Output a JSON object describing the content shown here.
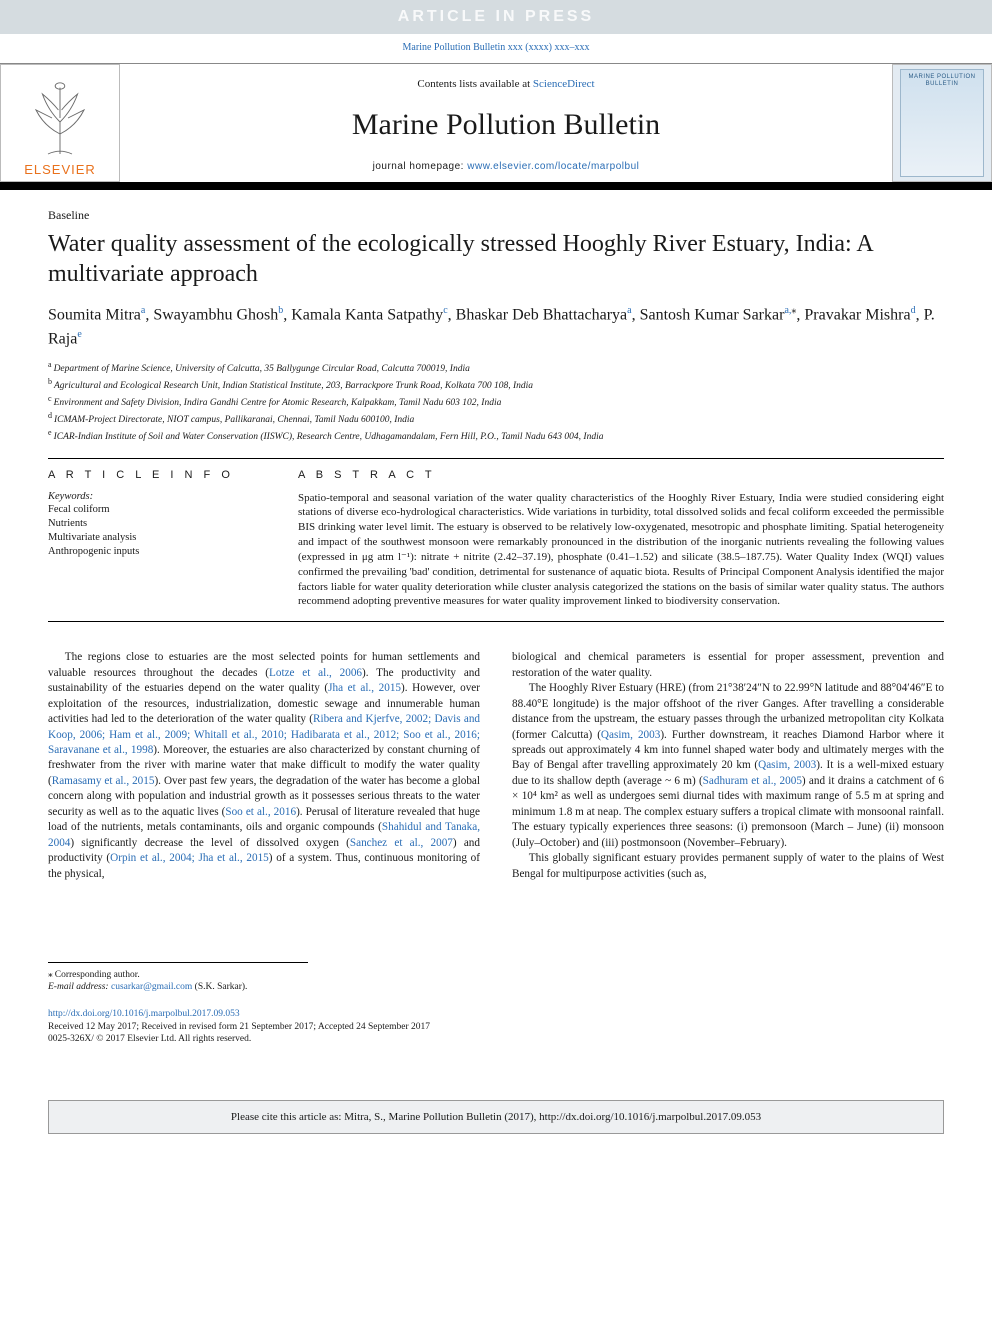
{
  "banner": {
    "label": "ARTICLE IN PRESS"
  },
  "journal_ref": {
    "text": "Marine Pollution Bulletin xxx (xxxx) xxx–xxx",
    "href_text": "Marine Pollution Bulletin xxx (xxxx) xxx–xxx"
  },
  "masthead": {
    "contents_prefix": "Contents lists available at ",
    "contents_link": "ScienceDirect",
    "journal_title": "Marine Pollution Bulletin",
    "homepage_prefix": "journal homepage: ",
    "homepage_link": "www.elsevier.com/locate/marpolbul",
    "publisher": "ELSEVIER",
    "cover_title": "MARINE POLLUTION BULLETIN"
  },
  "article": {
    "type": "Baseline",
    "title": "Water quality assessment of the ecologically stressed Hooghly River Estuary, India: A multivariate approach",
    "authors_html": "Soumita Mitra<sup class='sup-link'>a</sup>, Swayambhu Ghosh<sup class='sup-link'>b</sup>, Kamala Kanta Satpathy<sup class='sup-link'>c</sup>, Bhaskar Deb Bhattacharya<sup class='sup-link'>a</sup>, Santosh Kumar Sarkar<sup class='sup-link'>a,</sup><sup>⁎</sup>, Pravakar Mishra<sup class='sup-link'>d</sup>, P. Raja<sup class='sup-link'>e</sup>",
    "affiliations": [
      {
        "sup": "a",
        "text": "Department of Marine Science, University of Calcutta, 35 Ballygunge Circular Road, Calcutta 700019, India"
      },
      {
        "sup": "b",
        "text": "Agricultural and Ecological Research Unit, Indian Statistical Institute, 203, Barrackpore Trunk Road, Kolkata 700 108, India"
      },
      {
        "sup": "c",
        "text": "Environment and Safety Division, Indira Gandhi Centre for Atomic Research, Kalpakkam, Tamil Nadu 603 102, India"
      },
      {
        "sup": "d",
        "text": "ICMAM-Project Directorate, NIOT campus, Pallikaranai, Chennai, Tamil Nadu 600100, India"
      },
      {
        "sup": "e",
        "text": "ICAR-Indian Institute of Soil and Water Conservation (IISWC), Research Centre, Udhagamandalam, Fern Hill, P.O., Tamil Nadu 643 004, India"
      }
    ]
  },
  "info": {
    "head": "A R T I C L E  I N F O",
    "keywords_head": "Keywords:",
    "keywords": [
      "Fecal coliform",
      "Nutrients",
      "Multivariate analysis",
      "Anthropogenic inputs"
    ]
  },
  "abstract": {
    "head": "A B S T R A C T",
    "text": "Spatio-temporal and seasonal variation of the water quality characteristics of the Hooghly River Estuary, India were studied considering eight stations of diverse eco-hydrological characteristics. Wide variations in turbidity, total dissolved solids and fecal coliform exceeded the permissible BIS drinking water level limit. The estuary is observed to be relatively low-oxygenated, mesotropic and phosphate limiting. Spatial heterogeneity and impact of the southwest monsoon were remarkably pronounced in the distribution of the inorganic nutrients revealing the following values (expressed in μg atm l⁻¹): nitrate + nitrite (2.42–37.19), phosphate (0.41–1.52) and silicate (38.5–187.75). Water Quality Index (WQI) values confirmed the prevailing 'bad' condition, detrimental for sustenance of aquatic biota. Results of Principal Component Analysis identified the major factors liable for water quality deterioration while cluster analysis categorized the stations on the basis of similar water quality status. The authors recommend adopting preventive measures for water quality improvement linked to biodiversity conservation."
  },
  "body": {
    "left_html": "The regions close to estuaries are the most selected points for human settlements and valuable resources throughout the decades (<a class='ref-link' href='#'>Lotze et al., 2006</a>). The productivity and sustainability of the estuaries depend on the water quality (<a class='ref-link' href='#'>Jha et al., 2015</a>). However, over exploitation of the resources, industrialization, domestic sewage and innumerable human activities had led to the deterioration of the water quality (<a class='ref-link' href='#'>Ribera and Kjerfve, 2002; Davis and Koop, 2006; Ham et al., 2009; Whitall et al., 2010; Hadibarata et al., 2012; Soo et al., 2016; Saravanane et al., 1998</a>). Moreover, the estuaries are also characterized by constant churning of freshwater from the river with marine water that make difficult to modify the water quality (<a class='ref-link' href='#'>Ramasamy et al., 2015</a>). Over past few years, the degradation of the water has become a global concern along with population and industrial growth as it possesses serious threats to the water security as well as to the aquatic lives (<a class='ref-link' href='#'>Soo et al., 2016</a>). Perusal of literature revealed that huge load of the nutrients, metals contaminants, oils and organic compounds (<a class='ref-link' href='#'>Shahidul and Tanaka, 2004</a>) significantly decrease the level of dissolved oxygen (<a class='ref-link' href='#'>Sanchez et al., 2007</a>) and productivity (<a class='ref-link' href='#'>Orpin et al., 2004; Jha et al., 2015</a>) of a system. Thus, continuous monitoring of the physical,",
    "right_html_p1": "biological and chemical parameters is essential for proper assessment, prevention and restoration of the water quality.",
    "right_html_p2": "The Hooghly River Estuary (HRE) (from 21°38′24″N to 22.99°N latitude and 88°04′46″E to 88.40°E longitude) is the major offshoot of the river Ganges. After travelling a considerable distance from the upstream, the estuary passes through the urbanized metropolitan city Kolkata (former Calcutta) (<a class='ref-link' href='#'>Qasim, 2003</a>). Further downstream, it reaches Diamond Harbor where it spreads out approximately 4 km into funnel shaped water body and ultimately merges with the Bay of Bengal after travelling approximately 20 km (<a class='ref-link' href='#'>Qasim, 2003</a>). It is a well-mixed estuary due to its shallow depth (average ~ 6 m) (<a class='ref-link' href='#'>Sadhuram et al., 2005</a>) and it drains a catchment of 6 × 10⁴ km² as well as undergoes semi diurnal tides with maximum range of 5.5 m at spring and minimum 1.8 m at neap. The complex estuary suffers a tropical climate with monsoonal rainfall. The estuary typically experiences three seasons: (i) premonsoon (March – June) (ii) monsoon (July–October) and (iii) postmonsoon (November–February).",
    "right_html_p3": "This globally significant estuary provides permanent supply of water to the plains of West Bengal for multipurpose activities (such as,"
  },
  "footnotes": {
    "corr": "Corresponding author.",
    "email_label": "E-mail address: ",
    "email": "cusarkar@gmail.com",
    "email_tail": " (S.K. Sarkar)."
  },
  "copyright": {
    "doi": "http://dx.doi.org/10.1016/j.marpolbul.2017.09.053",
    "history": "Received 12 May 2017; Received in revised form 21 September 2017; Accepted 24 September 2017",
    "line": "0025-326X/ © 2017 Elsevier Ltd. All rights reserved."
  },
  "citation": {
    "text": "Please cite this article as: Mitra, S., Marine Pollution Bulletin (2017), http://dx.doi.org/10.1016/j.marpolbul.2017.09.053"
  },
  "colors": {
    "link": "#2a6db5",
    "banner_bg": "#d5dce0",
    "elsevier_orange": "#e9711c",
    "citation_bg": "#eef0f2"
  }
}
